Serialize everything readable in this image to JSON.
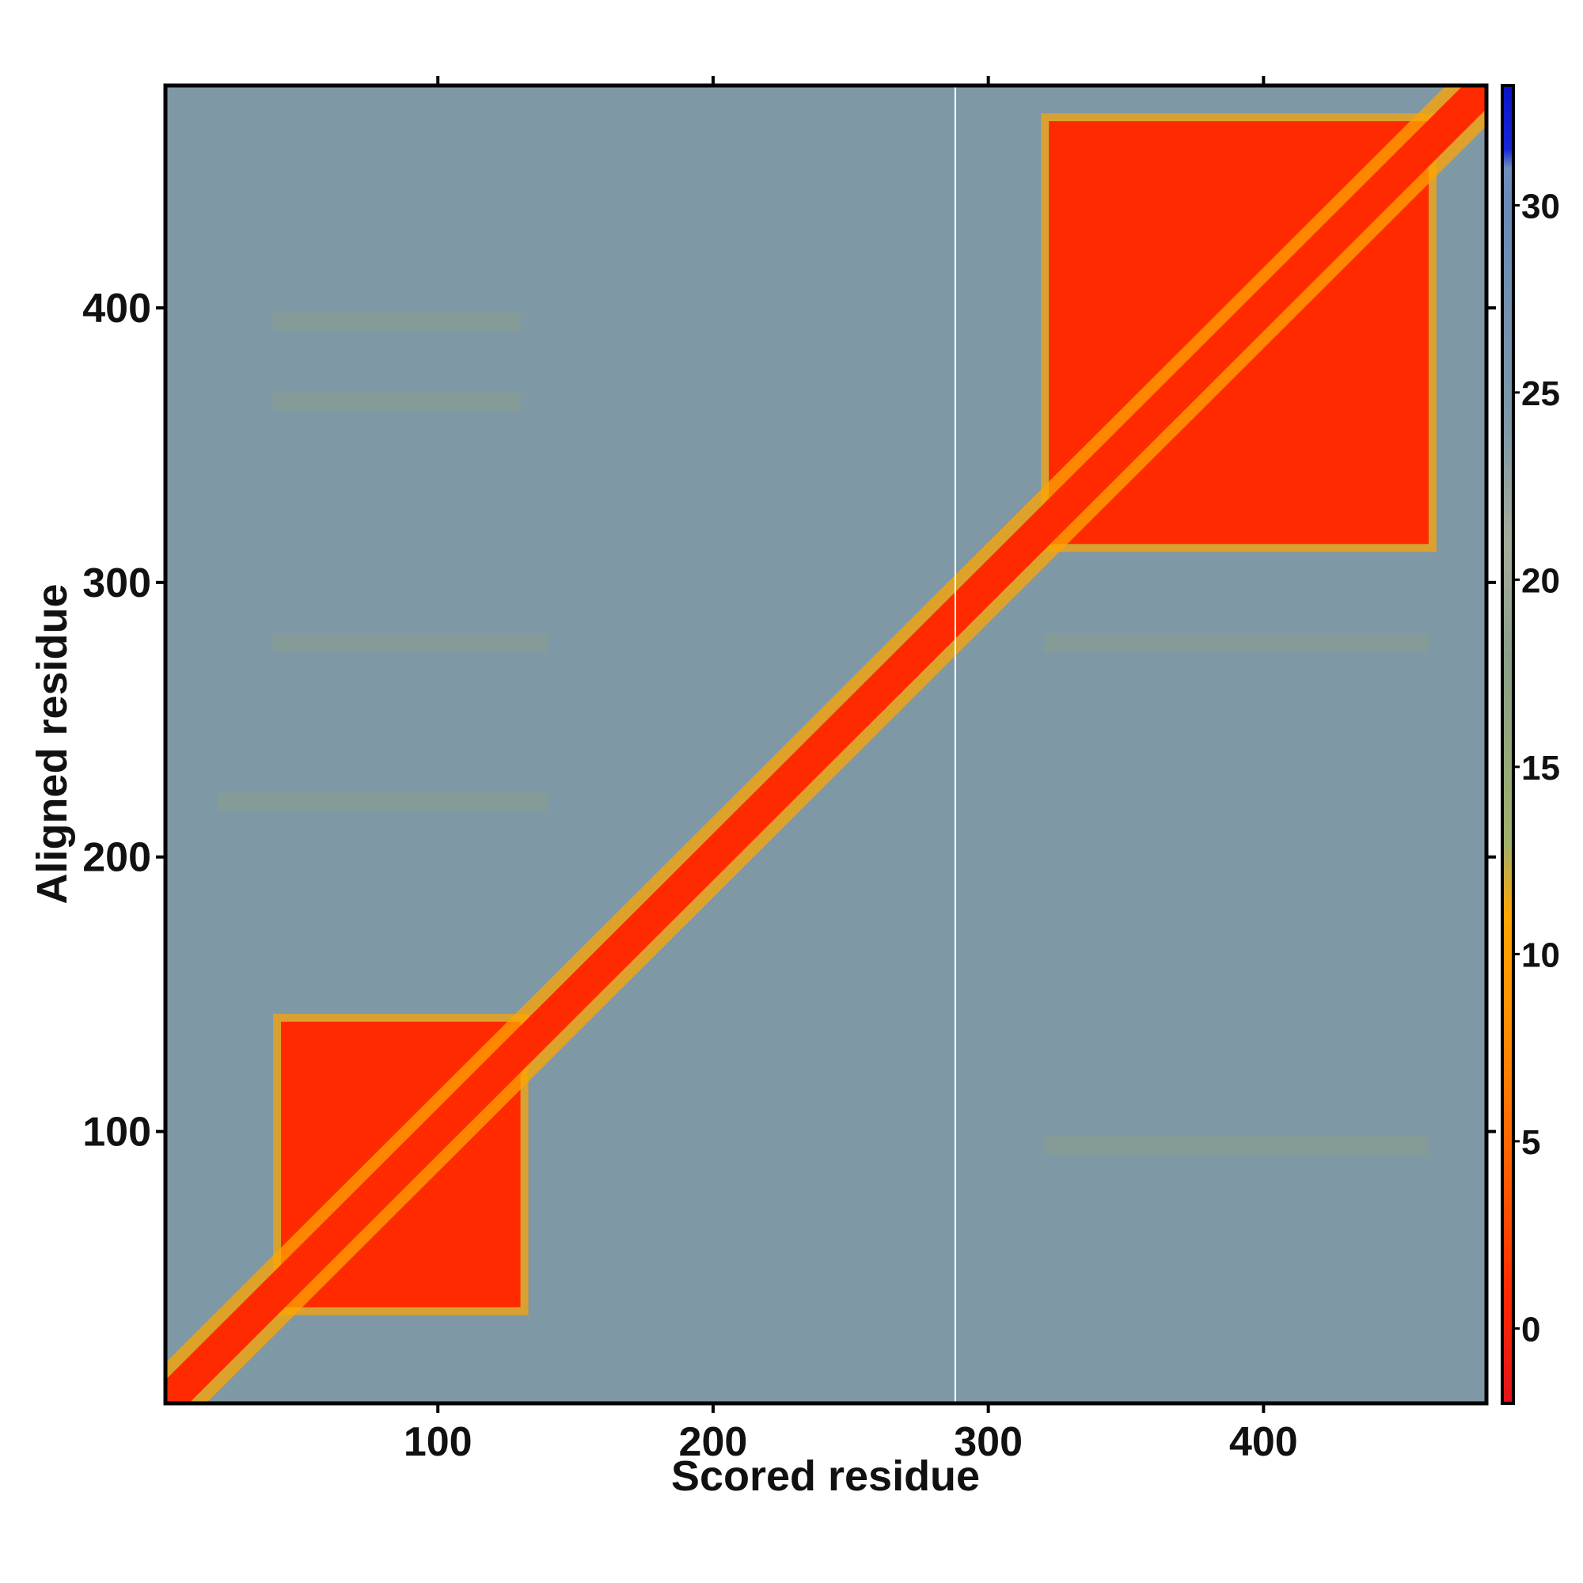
{
  "chart_data": {
    "type": "heatmap",
    "title": "",
    "xlabel": "Scored residue",
    "ylabel": "Aligned residue",
    "xlim": [
      1,
      481
    ],
    "ylim": [
      1,
      481
    ],
    "xticks": [
      100,
      200,
      300,
      400
    ],
    "yticks": [
      100,
      200,
      300,
      400
    ],
    "colorbar": {
      "range": [
        -2,
        33.2
      ],
      "ticks": [
        0,
        5,
        10,
        15,
        20,
        25,
        30
      ],
      "tick_labels": [
        "0",
        "5",
        "10",
        "15",
        "20",
        "25",
        "30"
      ],
      "color_stops": [
        {
          "value": -2,
          "color": "#e3141b"
        },
        {
          "value": 1,
          "color": "#ff2a00"
        },
        {
          "value": 4,
          "color": "#ff5a00"
        },
        {
          "value": 8,
          "color": "#ff8c00"
        },
        {
          "value": 11,
          "color": "#ffa500"
        },
        {
          "value": 13,
          "color": "#9fb06c"
        },
        {
          "value": 18,
          "color": "#8a9f8a"
        },
        {
          "value": 21,
          "color": "#a7ac9a"
        },
        {
          "value": 24,
          "color": "#7e98a6"
        },
        {
          "value": 30,
          "color": "#6a8ab5"
        },
        {
          "value": 31,
          "color": "#6f8dbd"
        },
        {
          "value": 31.5,
          "color": "#1726d6"
        },
        {
          "value": 33.2,
          "color": "#0a14c8"
        }
      ]
    },
    "background_value": 27,
    "diagonal_band": {
      "center_value": 1,
      "width_residues": 8
    },
    "domain_blocks": [
      {
        "name": "block-1",
        "x_range": [
          43,
          130
        ],
        "y_range": [
          36,
          140
        ],
        "value": 3
      },
      {
        "name": "block-2",
        "x_range": [
          322,
          460
        ],
        "y_range": [
          314,
          468
        ],
        "value": 3
      }
    ],
    "faint_bands": [
      {
        "orientation": "horizontal",
        "y": 395,
        "x_range": [
          40,
          130
        ],
        "value": 19
      },
      {
        "orientation": "horizontal",
        "y": 366,
        "x_range": [
          40,
          130
        ],
        "value": 20
      },
      {
        "orientation": "horizontal",
        "y": 278,
        "x_range": [
          40,
          140
        ],
        "value": 18
      },
      {
        "orientation": "horizontal",
        "y": 220,
        "x_range": [
          20,
          140
        ],
        "value": 19
      },
      {
        "orientation": "horizontal",
        "y": 278,
        "x_range": [
          320,
          460
        ],
        "value": 19
      },
      {
        "orientation": "horizontal",
        "y": 95,
        "x_range": [
          320,
          460
        ],
        "value": 20
      }
    ],
    "white_gap_column_x": 288
  }
}
